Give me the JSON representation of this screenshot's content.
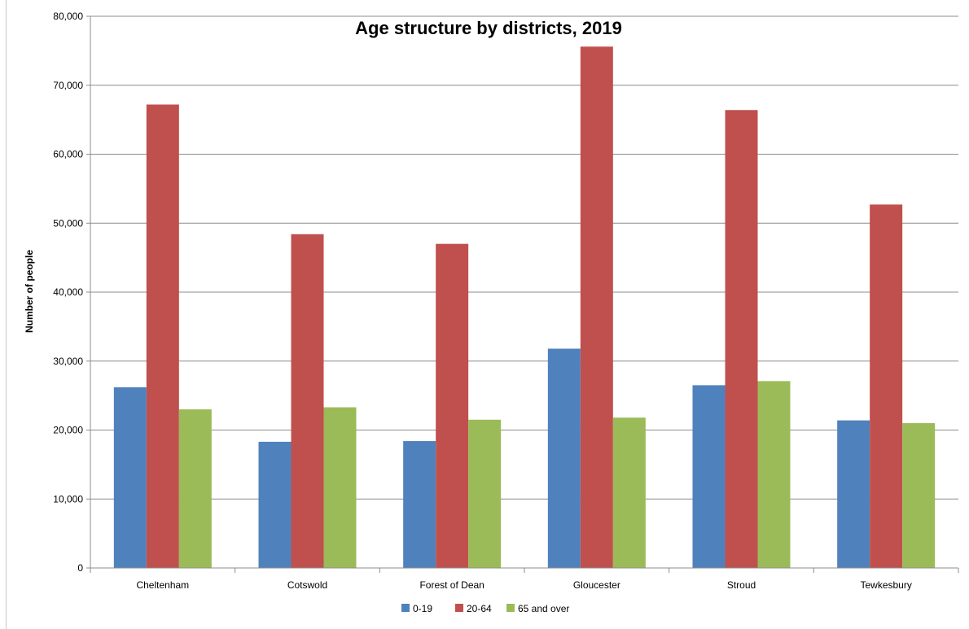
{
  "chart_data": {
    "type": "bar",
    "title": "Age structure by districts, 2019",
    "ylabel": "Number of people",
    "xlabel": "",
    "ylim": [
      0,
      80000
    ],
    "ytick_step": 10000,
    "y_tick_labels": [
      "0",
      "10,000",
      "20,000",
      "30,000",
      "40,000",
      "50,000",
      "60,000",
      "70,000",
      "80,000"
    ],
    "grid": true,
    "legend_position": "bottom",
    "categories": [
      "Cheltenham",
      "Cotswold",
      "Forest of Dean",
      "Gloucester",
      "Stroud",
      "Tewkesbury"
    ],
    "series": [
      {
        "name": "0-19",
        "color": "#4f81bd",
        "values": [
          26200,
          18300,
          18400,
          31800,
          26500,
          21400
        ]
      },
      {
        "name": "20-64",
        "color": "#c0504d",
        "values": [
          67200,
          48400,
          47000,
          75600,
          66400,
          52700
        ]
      },
      {
        "name": "65 and over",
        "color": "#9bbb59",
        "values": [
          23000,
          23300,
          21500,
          21800,
          27100,
          21000
        ]
      }
    ]
  }
}
